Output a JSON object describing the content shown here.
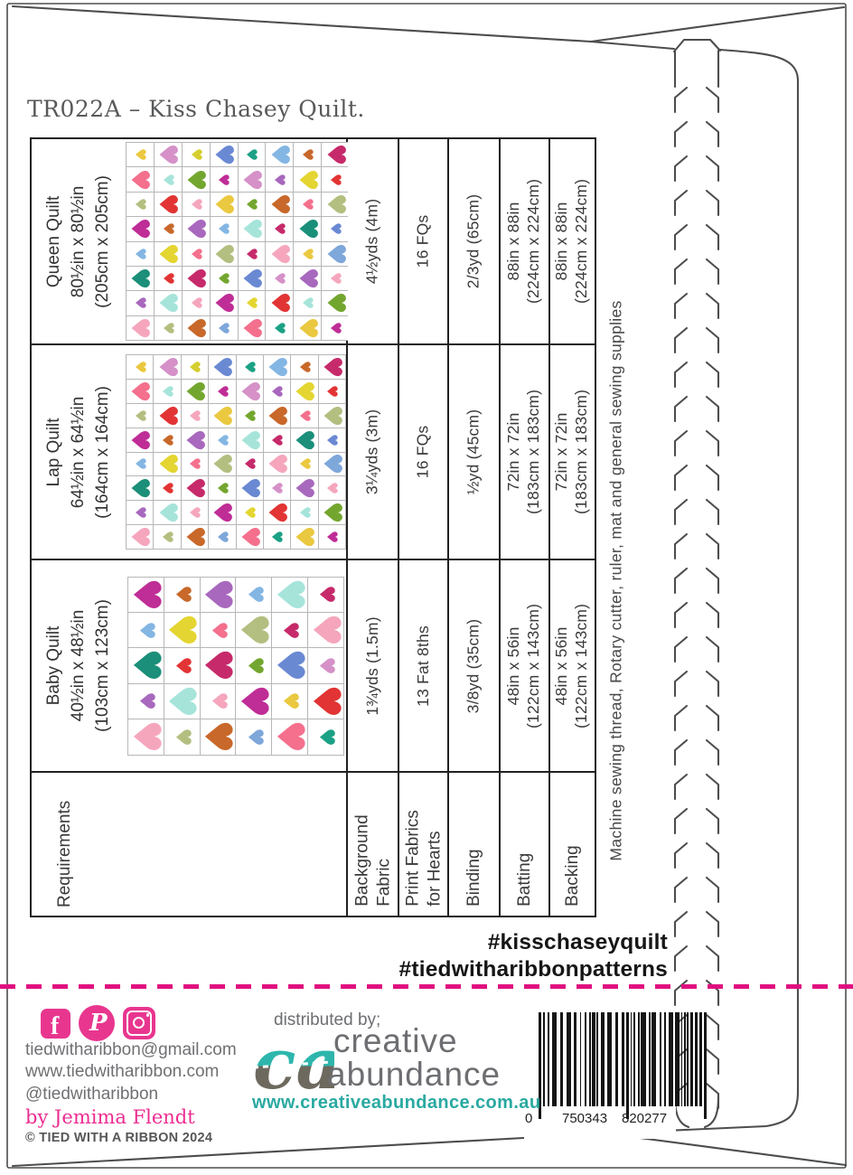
{
  "page": {
    "title": "TR022A – Kiss Chasey Quilt.",
    "hashtag_1": "#kisschaseyquilt",
    "hashtag_2": "#tiedwitharibbonpatterns"
  },
  "table": {
    "requirements_label": "Requirements",
    "column_headers": [
      "Background\nFabric",
      "Print Fabrics\nfor Hearts",
      "Binding",
      "Batting",
      "Backing"
    ],
    "quilts": [
      {
        "name": "Queen Quilt",
        "size_in": "80½in x 80½in",
        "size_cm": "(205cm x 205cm)",
        "grid": "grid8",
        "values": [
          "4½yds (4m)",
          "16 FQs",
          "2/3yd (65cm)",
          "88in x 88in\n(224cm x 224cm)",
          "88in x 88in\n(224cm x 224cm)"
        ]
      },
      {
        "name": "Lap Quilt",
        "size_in": "64½in x 64½in",
        "size_cm": "(164cm x 164cm)",
        "grid": "grid8",
        "values": [
          "3¼yds (3m)",
          "16 FQs",
          "½yd (45cm)",
          "72in x 72in\n(183cm x 183cm)",
          "72in x 72in\n(183cm x 183cm)"
        ]
      },
      {
        "name": "Baby Quilt",
        "size_in": "40½in x 48½in",
        "size_cm": "(103cm x 123cm)",
        "grid": "gridbaby",
        "values": [
          "1¾yds (1.5m)",
          "13 Fat 8ths",
          "3/8yd (35cm)",
          "48in x 56in\n(122cm x 143cm)",
          "48in x 56in\n(122cm x 143cm)"
        ]
      }
    ],
    "supplies_note": "Machine sewing thread, Rotary cutter, ruler, mat and general sewing supplies"
  },
  "palette": {
    "gold": "#eac83f",
    "orchid": "#d591c8",
    "lime": "#d6ce2f",
    "blue": "#6a89d3",
    "teal": "#1ba185",
    "lightblue": "#84b6e3",
    "orange": "#c8682a",
    "raspberry": "#c62a6a",
    "coral": "#f4708d",
    "aqua": "#a6e4da",
    "green": "#73a62f",
    "magenta": "#bf2d96",
    "plum": "#a868bd",
    "yellow": "#e4d532",
    "red": "#e23434",
    "sage": "#b3bf80",
    "pink": "#f5a6bd",
    "darkteal": "#1b8f79",
    "steelblue": "#7ea7da"
  },
  "quilt_grids": {
    "grid8": [
      [
        "gold:S",
        "orchid:L",
        "lime:S",
        "blue:L",
        "teal:S",
        "lightblue:L",
        "orange:S",
        "raspberry:L"
      ],
      [
        "coral:L",
        "aqua:S",
        "green:L",
        "magenta:S",
        "orchid:L",
        "plum:S",
        "yellow:L",
        "red:S"
      ],
      [
        "sage:S",
        "red:L",
        "pink:S",
        "gold:L",
        "green:S",
        "orange:L",
        "coral:S",
        "sage:L"
      ],
      [
        "magenta:L",
        "orange:S",
        "plum:L",
        "lightblue:S",
        "aqua:L",
        "raspberry:S",
        "darkteal:L",
        "blue:S"
      ],
      [
        "lightblue:S",
        "yellow:L",
        "coral:S",
        "sage:L",
        "raspberry:S",
        "pink:L",
        "gold:S",
        "steelblue:L"
      ],
      [
        "darkteal:L",
        "red:S",
        "raspberry:L",
        "green:S",
        "blue:L",
        "orchid:S",
        "plum:L",
        "pink:S"
      ],
      [
        "plum:S",
        "aqua:L",
        "pink:S",
        "magenta:L",
        "yellow:S",
        "red:L",
        "aqua:S",
        "green:L"
      ],
      [
        "pink:L",
        "sage:S",
        "orange:L",
        "steelblue:S",
        "coral:L",
        "teal:S",
        "gold:L",
        "magenta:S"
      ]
    ],
    "gridbaby": [
      [
        "magenta:L",
        "orange:S",
        "plum:L",
        "lightblue:S",
        "aqua:L",
        "raspberry:S"
      ],
      [
        "lightblue:S",
        "yellow:L",
        "coral:S",
        "sage:L",
        "raspberry:S",
        "pink:L"
      ],
      [
        "darkteal:L",
        "red:S",
        "raspberry:L",
        "green:S",
        "blue:L",
        "orchid:S"
      ],
      [
        "plum:S",
        "aqua:L",
        "pink:S",
        "magenta:L",
        "gold:S",
        "red:L"
      ],
      [
        "pink:L",
        "sage:S",
        "orange:L",
        "steelblue:S",
        "coral:L",
        "teal:S"
      ]
    ]
  },
  "footer": {
    "social_icons": [
      "facebook",
      "pinterest",
      "instagram"
    ],
    "facebook_glyph": "f",
    "pinterest_glyph": "P",
    "email": "tiedwitharibbon@gmail.com",
    "website": "www.tiedwitharibbon.com",
    "handle": "@tiedwitharibbon",
    "byline": "by Jemima Flendt",
    "copyright": "© TIED WITH A RIBBON 2024",
    "distributed_by": "distributed by;",
    "distributor_monogram": "ca",
    "distributor_word_1": "creative",
    "distributor_word_2": "abundance",
    "distributor_url": "www.creativeabundance.com.au"
  },
  "barcode": {
    "left_digit": "0",
    "group_1": "750343",
    "group_2": "820277"
  },
  "colors": {
    "accent_pink": "#e8368f",
    "dash_pink": "#e0107f",
    "teal": "#2eb6ac",
    "line_gray": "#4d4d4f"
  }
}
